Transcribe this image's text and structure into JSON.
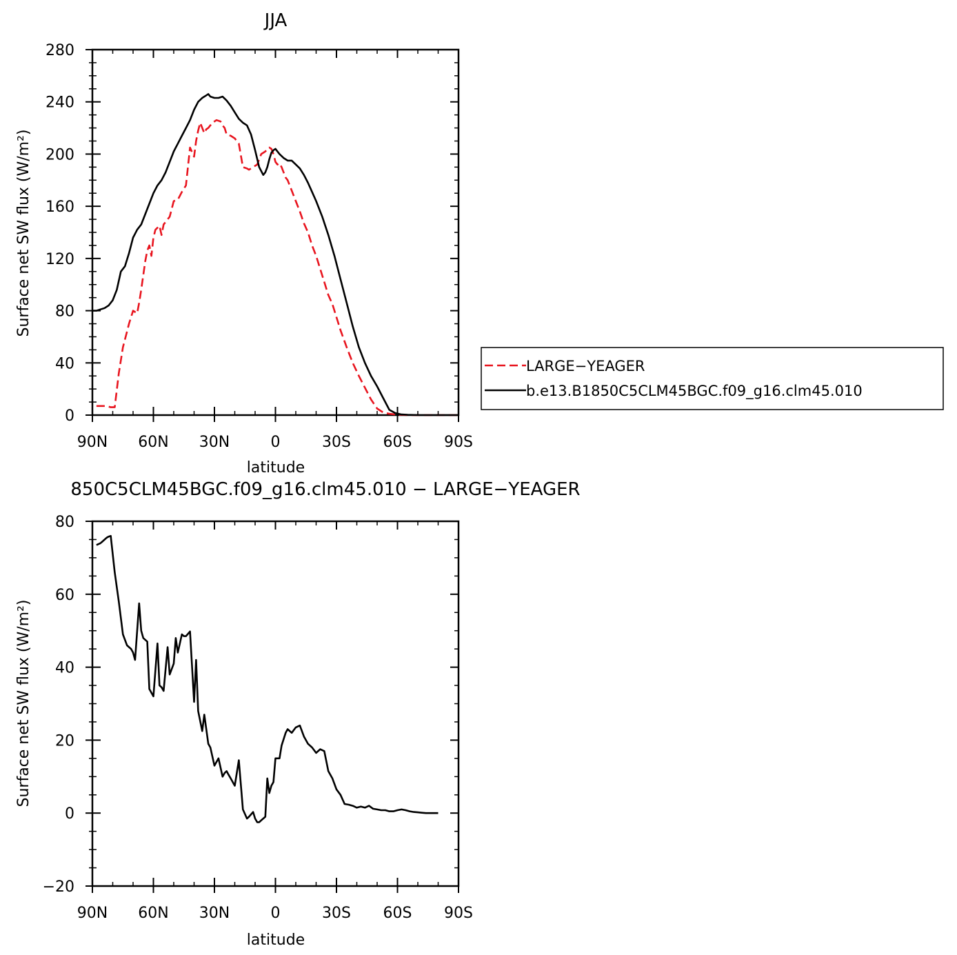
{
  "chart_data": [
    {
      "type": "line",
      "title": "JJA",
      "xlabel": "latitude",
      "ylabel": "Surface net SW flux (W/m²)",
      "x_reversed": true,
      "xlim": [
        90,
        -90
      ],
      "ylim": [
        0,
        280
      ],
      "xticks": [
        90,
        60,
        30,
        0,
        -30,
        -60,
        -90
      ],
      "xticklabels": [
        "90N",
        "60N",
        "30N",
        "0",
        "30S",
        "60S",
        "90S"
      ],
      "yticks": [
        0,
        40,
        80,
        120,
        160,
        200,
        240,
        280
      ],
      "yticklabels": [
        "0",
        "40",
        "80",
        "120",
        "160",
        "200",
        "240",
        "280"
      ],
      "legend": "right-outside",
      "series": [
        {
          "name": "LARGE−YEAGER",
          "color": "#e8141e",
          "dash": "dashed",
          "x": [
            88,
            85,
            83,
            81,
            79,
            77,
            75,
            73,
            72,
            70,
            68,
            67,
            66,
            64,
            63,
            62,
            61,
            60,
            59,
            57,
            56,
            55,
            53,
            52,
            51,
            50,
            48,
            46,
            44,
            42,
            40,
            39,
            38,
            37,
            35,
            34,
            33,
            31,
            29,
            27,
            26,
            25,
            24,
            22,
            20,
            18,
            16,
            14,
            13,
            11,
            9,
            7,
            5,
            3,
            2,
            1,
            0,
            -1,
            -2,
            -3,
            -5,
            -6,
            -8,
            -10,
            -12,
            -14,
            -16,
            -18,
            -20,
            -22,
            -24,
            -26,
            -28,
            -30,
            -32,
            -35,
            -38,
            -41,
            -44,
            -47,
            -50,
            -53,
            -56,
            -59,
            -62,
            -65,
            -68,
            -71,
            -75,
            -80,
            -85,
            -90
          ],
          "y": [
            7,
            7,
            7,
            6,
            6,
            32,
            52,
            64,
            70,
            80,
            78,
            86,
            96,
            118,
            126,
            130,
            122,
            136,
            142,
            145,
            138,
            146,
            150,
            152,
            158,
            164,
            165,
            171,
            176,
            205,
            198,
            210,
            218,
            224,
            216,
            219,
            220,
            224,
            226,
            225,
            222,
            220,
            215,
            214,
            212,
            208,
            190,
            189,
            188,
            190,
            192,
            200,
            202,
            205,
            204,
            200,
            194,
            192,
            193,
            190,
            182,
            180,
            172,
            164,
            156,
            147,
            140,
            130,
            122,
            112,
            102,
            92,
            85,
            75,
            65,
            52,
            40,
            30,
            21,
            12,
            5,
            2,
            1,
            0.5,
            0.2,
            0,
            0,
            0,
            0,
            0,
            0,
            0
          ]
        },
        {
          "name": "b.e13.B1850C5CLM45BGC.f09_g16.clm45.010",
          "color": "#000000",
          "dash": "solid",
          "x": [
            90,
            88,
            86,
            84,
            82,
            80,
            78,
            76,
            74,
            72,
            70,
            68,
            66,
            64,
            62,
            60,
            58,
            56,
            54,
            52,
            50,
            48,
            46,
            44,
            42,
            40,
            38,
            36,
            34,
            33,
            32,
            30,
            28,
            26,
            24,
            22,
            20,
            18,
            16,
            14,
            12,
            10,
            8,
            6,
            5,
            4,
            3,
            2,
            1,
            0,
            -2,
            -4,
            -6,
            -8,
            -10,
            -12,
            -14,
            -16,
            -18,
            -20,
            -23,
            -26,
            -29,
            -32,
            -35,
            -38,
            -41,
            -44,
            -47,
            -50,
            -53,
            -56,
            -59,
            -62,
            -65,
            -68,
            -71,
            -75,
            -80,
            -85,
            -90
          ],
          "y": [
            80,
            80,
            81,
            82,
            84,
            88,
            96,
            110,
            114,
            124,
            136,
            142,
            146,
            154,
            162,
            170,
            176,
            180,
            186,
            194,
            202,
            208,
            214,
            220,
            226,
            234,
            240,
            243,
            245,
            246,
            244,
            243,
            243,
            244,
            241,
            237,
            232,
            227,
            224,
            222,
            215,
            203,
            190,
            184,
            186,
            190,
            196,
            201,
            203,
            204,
            200,
            197,
            195,
            195,
            192,
            189,
            184,
            178,
            171,
            164,
            152,
            138,
            122,
            104,
            86,
            68,
            52,
            40,
            30,
            22,
            13,
            4,
            1.5,
            0.5,
            0.2,
            0.1,
            0,
            0,
            0,
            0,
            0
          ]
        }
      ]
    },
    {
      "type": "line",
      "title": "850C5CLM45BGC.f09_g16.clm45.010 − LARGE−YEAGER",
      "xlabel": "latitude",
      "ylabel": "Surface net SW flux (W/m²)",
      "x_reversed": true,
      "xlim": [
        90,
        -90
      ],
      "ylim": [
        -20,
        80
      ],
      "xticks": [
        90,
        60,
        30,
        0,
        -30,
        -60,
        -90
      ],
      "xticklabels": [
        "90N",
        "60N",
        "30N",
        "0",
        "30S",
        "60S",
        "90S"
      ],
      "yticks": [
        -20,
        0,
        20,
        40,
        60,
        80
      ],
      "yticklabels": [
        "−20",
        "0",
        "20",
        "40",
        "60",
        "80"
      ],
      "series": [
        {
          "color": "#000000",
          "dash": "solid",
          "x": [
            88,
            86,
            85,
            84,
            83,
            82,
            81,
            79,
            77,
            75,
            73,
            72,
            71,
            70,
            69,
            67,
            66,
            65,
            63,
            62,
            60,
            58,
            57,
            56,
            55,
            53,
            52,
            50,
            49,
            48,
            46,
            45,
            44,
            42,
            40,
            39,
            38,
            36,
            35,
            33,
            32,
            30,
            28,
            26,
            25,
            24,
            23,
            22,
            20,
            18,
            16,
            14,
            13,
            11,
            10,
            9,
            8,
            6,
            5,
            4,
            3,
            2,
            1,
            0,
            -2,
            -3,
            -5,
            -6,
            -8,
            -10,
            -12,
            -14,
            -16,
            -18,
            -20,
            -22,
            -24,
            -26,
            -28,
            -30,
            -32,
            -34,
            -36,
            -38,
            -40,
            -42,
            -44,
            -46,
            -48,
            -50,
            -52,
            -54,
            -56,
            -58,
            -60,
            -62,
            -64,
            -66,
            -68,
            -70,
            -72,
            -74,
            -76,
            -78,
            -80
          ],
          "y": [
            73.5,
            74,
            74.5,
            75,
            75.5,
            75.8,
            76,
            66,
            58,
            49,
            46,
            45.5,
            45,
            44,
            42,
            57.5,
            50,
            48,
            47,
            34,
            32,
            46.5,
            35,
            34.5,
            33.5,
            45.5,
            38,
            41,
            48,
            44,
            49,
            48.5,
            48.5,
            49.8,
            30.5,
            42,
            28,
            22.5,
            27,
            19,
            18,
            13,
            15,
            10,
            11,
            11.5,
            10.5,
            9.5,
            7.5,
            14.5,
            1,
            -1.5,
            -1,
            0.3,
            -1.5,
            -2.5,
            -2.5,
            -1.5,
            -1,
            9.5,
            5.5,
            7.5,
            8.5,
            15,
            15,
            18.5,
            22,
            23,
            22,
            23.5,
            24,
            21,
            19,
            18,
            16.5,
            17.5,
            17,
            11.5,
            9.5,
            6.5,
            5,
            2.5,
            2.3,
            2,
            1.5,
            1.8,
            1.5,
            2,
            1.2,
            1,
            0.8,
            0.8,
            0.5,
            0.5,
            0.8,
            1,
            0.8,
            0.5,
            0.3,
            0.2,
            0.1,
            0,
            0,
            0,
            0
          ]
        }
      ]
    }
  ]
}
